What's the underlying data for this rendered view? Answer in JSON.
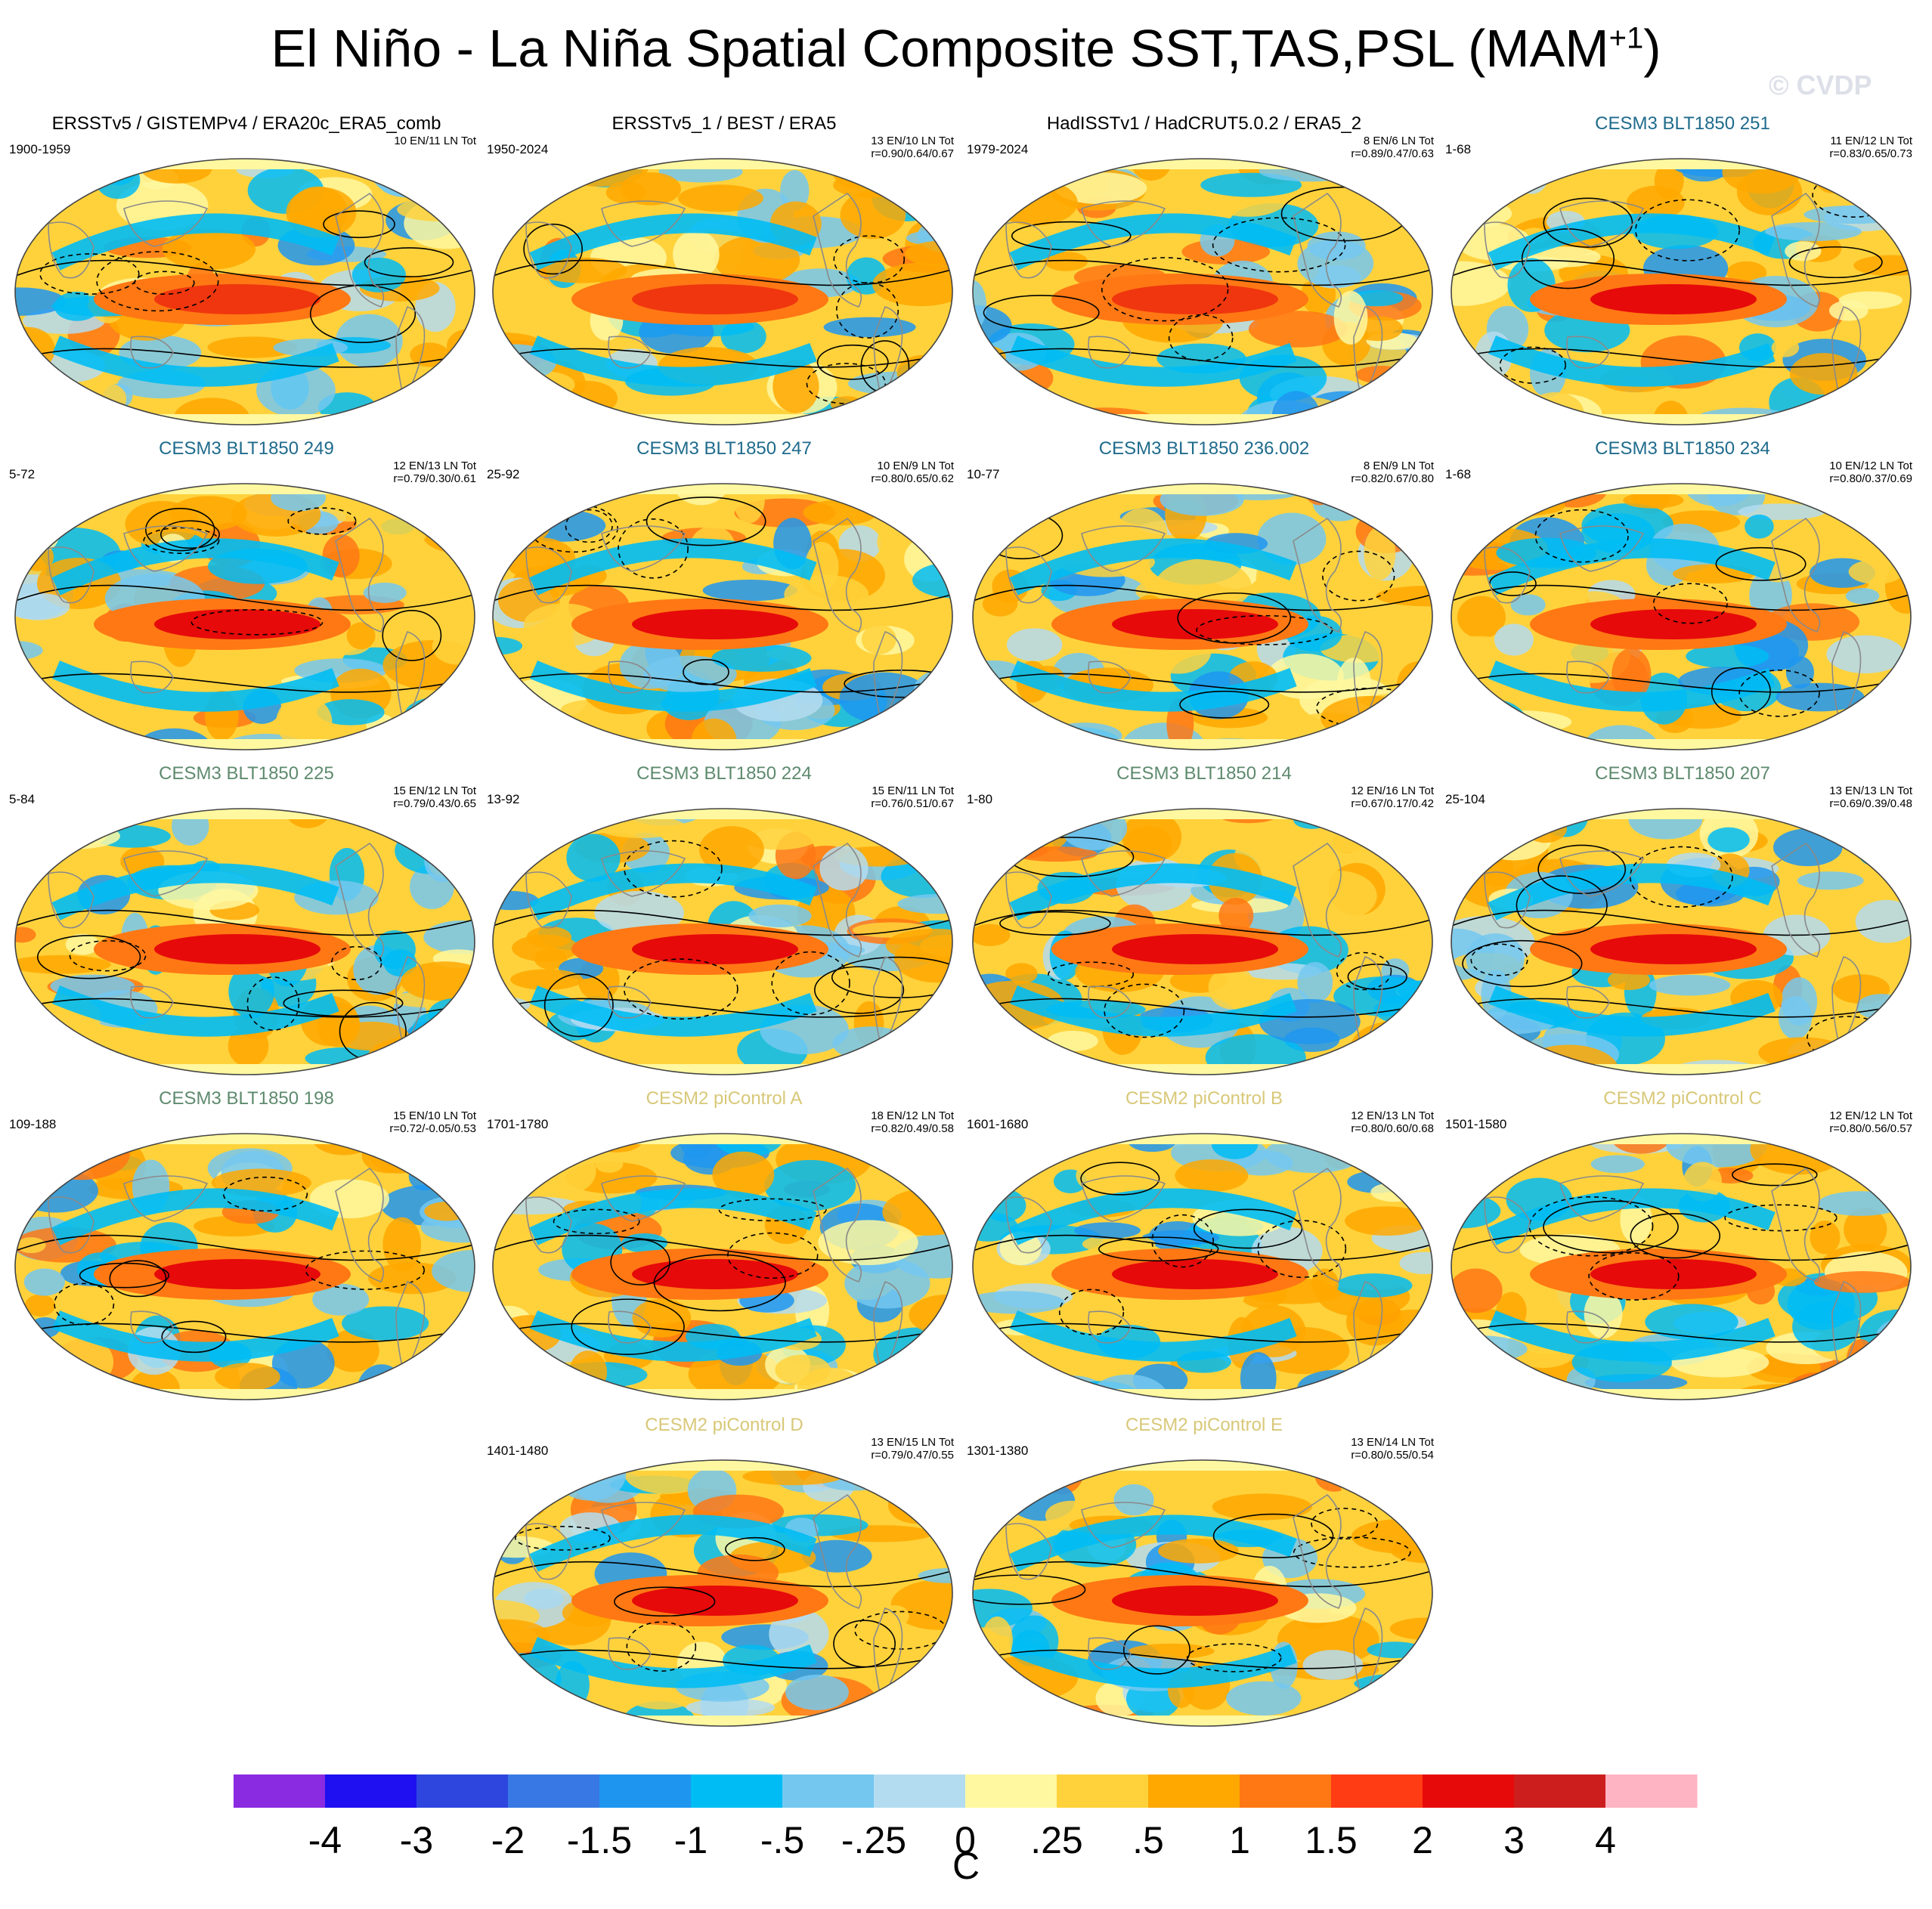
{
  "title": "El Niño - La Niña Spatial Composite SST,TAS,PSL (MAM",
  "title_sup": "+1",
  "title_close": ")",
  "copyright": "© CVDP",
  "panels": [
    {
      "title": "ERSSTv5 / GISTEMPv4 / ERA20c_ERA5_comb",
      "title_color": "#000000",
      "years": "1900-1959",
      "counts": "10 EN/11 LN Tot",
      "corr": ""
    },
    {
      "title": "ERSSTv5_1 / BEST / ERA5",
      "title_color": "#000000",
      "years": "1950-2024",
      "counts": "13 EN/10 LN Tot",
      "corr": "r=0.90/0.64/0.67"
    },
    {
      "title": "HadISSTv1 / HadCRUT5.0.2 / ERA5_2",
      "title_color": "#000000",
      "years": "1979-2024",
      "counts": "8 EN/6 LN Tot",
      "corr": "r=0.89/0.47/0.63"
    },
    {
      "title": "CESM3 BLT1850 251",
      "title_color": "#1f6b8c",
      "years": "1-68",
      "counts": "11 EN/12 LN Tot",
      "corr": "r=0.83/0.65/0.73"
    },
    {
      "title": "CESM3 BLT1850 249",
      "title_color": "#1f6b8c",
      "years": "5-72",
      "counts": "12 EN/13 LN Tot",
      "corr": "r=0.79/0.30/0.61"
    },
    {
      "title": "CESM3 BLT1850 247",
      "title_color": "#1f6b8c",
      "years": "25-92",
      "counts": "10 EN/9 LN Tot",
      "corr": "r=0.80/0.65/0.62"
    },
    {
      "title": "CESM3 BLT1850 236.002",
      "title_color": "#1f6b8c",
      "years": "10-77",
      "counts": "8 EN/9 LN Tot",
      "corr": "r=0.82/0.67/0.80"
    },
    {
      "title": "CESM3 BLT1850 234",
      "title_color": "#1f6b8c",
      "years": "1-68",
      "counts": "10 EN/12 LN Tot",
      "corr": "r=0.80/0.37/0.69"
    },
    {
      "title": "CESM3 BLT1850 225",
      "title_color": "#5e8a6e",
      "years": "5-84",
      "counts": "15 EN/12 LN Tot",
      "corr": "r=0.79/0.43/0.65"
    },
    {
      "title": "CESM3 BLT1850 224",
      "title_color": "#5e8a6e",
      "years": "13-92",
      "counts": "15 EN/11 LN Tot",
      "corr": "r=0.76/0.51/0.67"
    },
    {
      "title": "CESM3 BLT1850 214",
      "title_color": "#5e8a6e",
      "years": "1-80",
      "counts": "12 EN/16 LN Tot",
      "corr": "r=0.67/0.17/0.42"
    },
    {
      "title": "CESM3 BLT1850 207",
      "title_color": "#5e8a6e",
      "years": "25-104",
      "counts": "13 EN/13 LN Tot",
      "corr": "r=0.69/0.39/0.48"
    },
    {
      "title": "CESM3 BLT1850 198",
      "title_color": "#5e8a6e",
      "years": "109-188",
      "counts": "15 EN/10 LN Tot",
      "corr": "r=0.72/-0.05/0.53"
    },
    {
      "title": "CESM2 piControl A",
      "title_color": "#d8c878",
      "years": "1701-1780",
      "counts": "18 EN/12 LN Tot",
      "corr": "r=0.82/0.49/0.58"
    },
    {
      "title": "CESM2 piControl B",
      "title_color": "#d8c878",
      "years": "1601-1680",
      "counts": "12 EN/13 LN Tot",
      "corr": "r=0.80/0.60/0.68"
    },
    {
      "title": "CESM2 piControl C",
      "title_color": "#d8c878",
      "years": "1501-1580",
      "counts": "12 EN/12 LN Tot",
      "corr": "r=0.80/0.56/0.57"
    },
    {
      "title": "CESM2 piControl D",
      "title_color": "#d8c878",
      "years": "1401-1480",
      "counts": "13 EN/15 LN Tot",
      "corr": "r=0.79/0.47/0.55"
    },
    {
      "title": "CESM2 piControl E",
      "title_color": "#d8c878",
      "years": "1301-1380",
      "counts": "13 EN/14 LN Tot",
      "corr": "r=0.80/0.55/0.54"
    }
  ],
  "colorbar": {
    "colors": [
      "#8a2be2",
      "#1e10f0",
      "#2e46de",
      "#3878e4",
      "#1e96f0",
      "#00bcf4",
      "#74c8f0",
      "#b4dcf0",
      "#fff8a0",
      "#ffd23c",
      "#ffa800",
      "#ff7814",
      "#ff3c14",
      "#e60a0a",
      "#cd1e1e",
      "#ffb4c3"
    ],
    "labels": [
      "-4",
      "-3",
      "-2",
      "-1.5",
      "-1",
      "-.5",
      "-.25",
      "0",
      ".25",
      ".5",
      "1",
      "1.5",
      "2",
      "3",
      "4"
    ],
    "unit": "C"
  }
}
